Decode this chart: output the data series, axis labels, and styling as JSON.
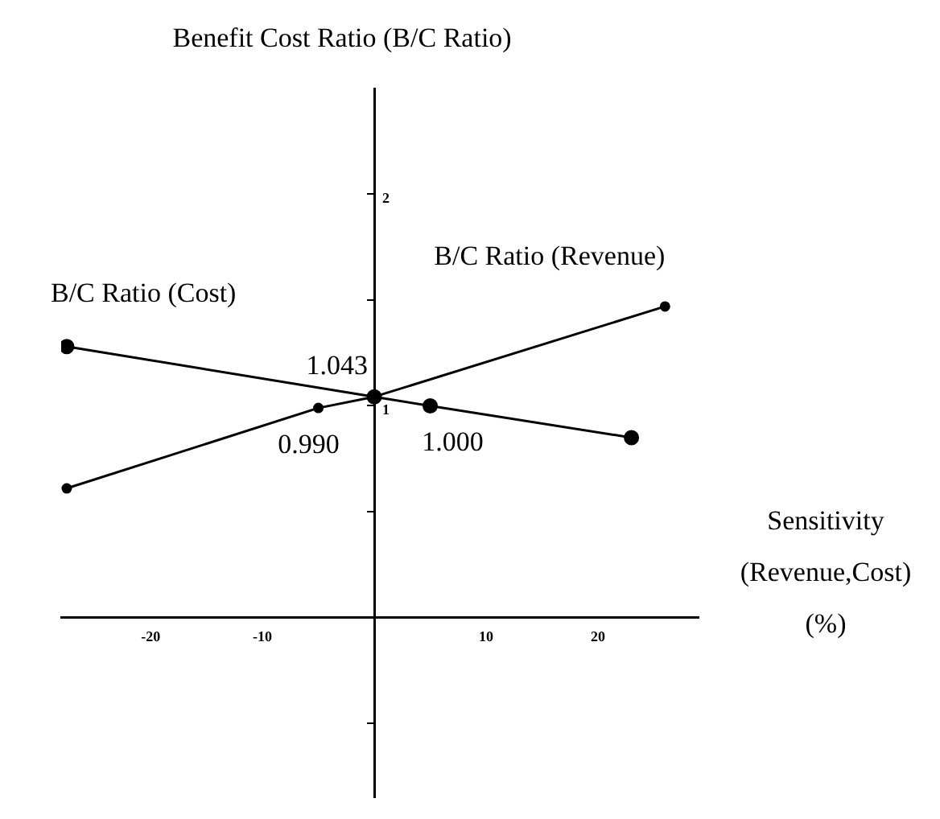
{
  "chart_data": {
    "type": "line",
    "ylabel": "Benefit Cost Ratio (B/C Ratio)",
    "xlabel": "Sensitivity (Revenue,Cost) (%)",
    "xlim": [
      -28,
      29
    ],
    "xticks": [
      -20,
      -10,
      10,
      20
    ],
    "ylim": [
      -0.85,
      2.5
    ],
    "yticks": [
      {
        "value": -0.5,
        "label": null
      },
      {
        "value": 0.5,
        "label": null
      },
      1,
      {
        "value": 1.5,
        "label": null
      },
      2
    ],
    "grid": false,
    "legend": false,
    "marker": "circle",
    "line_style": "solid",
    "series": [
      {
        "name": "B/C Ratio (Cost)",
        "color": "#000000",
        "x": [
          -27.5,
          0,
          5,
          23
        ],
        "values": [
          1.28,
          1.043,
          1.0,
          0.85
        ]
      },
      {
        "name": "B/C Ratio (Revenue)",
        "color": "#000000",
        "x": [
          -27.5,
          -5,
          0,
          26
        ],
        "values": [
          0.61,
          0.99,
          1.043,
          1.47
        ]
      }
    ],
    "annotations": [
      {
        "text": "1.043",
        "x": 0,
        "y": 1.043
      },
      {
        "text": "0.990",
        "x": -5,
        "y": 0.99
      },
      {
        "text": "1.000",
        "x": 5,
        "y": 1.0
      }
    ]
  }
}
